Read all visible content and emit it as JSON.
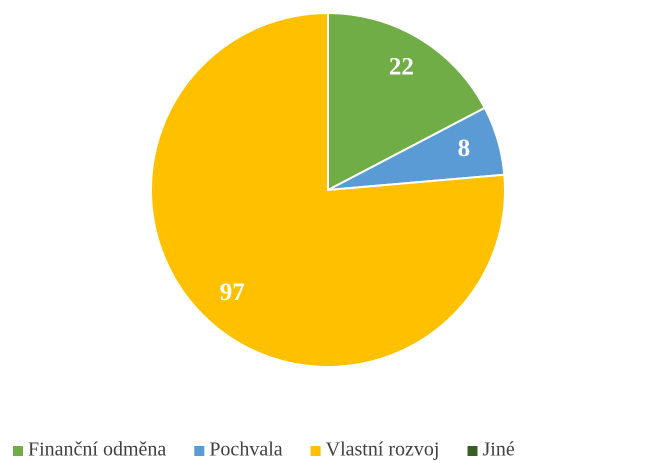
{
  "chart_data": {
    "type": "pie",
    "categories": [
      "Finanční odměna",
      "Pochvala",
      "Vlastní rozvoj",
      "Jiné"
    ],
    "values": [
      22,
      8,
      97,
      0
    ],
    "value_labels": [
      "22",
      "8",
      "97",
      null
    ],
    "colors": [
      "#70ad47",
      "#5b9bd5",
      "#ffc000",
      "#375e23"
    ],
    "legend": "bottom"
  }
}
